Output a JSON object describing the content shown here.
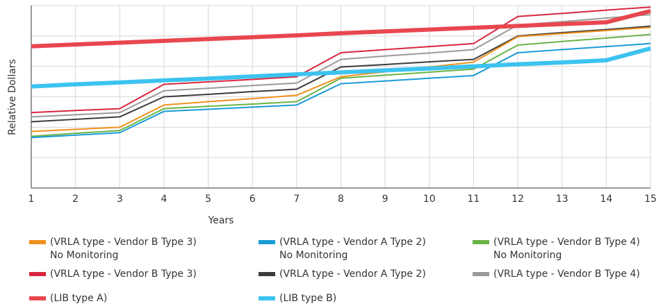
{
  "chart_data": {
    "type": "line",
    "x_label": "Years",
    "y_label": "Relative Dollars",
    "x": [
      1,
      2,
      3,
      4,
      5,
      6,
      7,
      8,
      9,
      10,
      11,
      12,
      13,
      14,
      15
    ],
    "xlim": [
      1,
      15
    ],
    "xticks": [
      1,
      2,
      3,
      4,
      5,
      6,
      7,
      8,
      9,
      10,
      11,
      12,
      13,
      14,
      15
    ],
    "ylim": [
      0,
      6
    ],
    "ygrid": [
      0,
      1,
      2,
      3,
      4,
      5,
      6
    ],
    "grid": true,
    "series": [
      {
        "name": "(VRLA type - Vendor B Type 3)\nNo Monitoring",
        "color": "#f0901e",
        "width": 2,
        "values": [
          1.86,
          1.93,
          2.0,
          2.73,
          2.84,
          2.94,
          3.05,
          3.66,
          3.82,
          3.98,
          4.14,
          4.98,
          5.08,
          5.18,
          5.28
        ]
      },
      {
        "name": "(VRLA type - Vendor A Type 2)\nNo Monitoring",
        "color": "#1a9bd6",
        "width": 2,
        "values": [
          1.66,
          1.74,
          1.82,
          2.52,
          2.59,
          2.66,
          2.73,
          3.43,
          3.52,
          3.61,
          3.7,
          4.45,
          4.55,
          4.65,
          4.75
        ]
      },
      {
        "name": "(VRLA type - Vendor B Type 4)\nNo Monitoring",
        "color": "#6ab344",
        "width": 2,
        "values": [
          1.7,
          1.8,
          1.89,
          2.61,
          2.69,
          2.76,
          2.84,
          3.61,
          3.71,
          3.81,
          3.91,
          4.7,
          4.82,
          4.93,
          5.05
        ]
      },
      {
        "name": "(VRLA type - Vendor B Type 3)",
        "color": "#d7263d",
        "width": 2,
        "values": [
          2.48,
          2.55,
          2.61,
          3.41,
          3.49,
          3.57,
          3.66,
          4.45,
          4.55,
          4.65,
          4.75,
          5.64,
          5.74,
          5.85,
          5.95
        ]
      },
      {
        "name": "(VRLA type - Vendor A Type 2)",
        "color": "#3b3b3b",
        "width": 2,
        "values": [
          2.18,
          2.26,
          2.34,
          3.0,
          3.08,
          3.17,
          3.25,
          3.98,
          4.06,
          4.15,
          4.23,
          5.0,
          5.11,
          5.21,
          5.32
        ]
      },
      {
        "name": "(VRLA type - Vendor B Type 4)",
        "color": "#9a9a9a",
        "width": 2,
        "values": [
          2.34,
          2.41,
          2.48,
          3.2,
          3.28,
          3.37,
          3.45,
          4.23,
          4.34,
          4.44,
          4.55,
          5.36,
          5.47,
          5.59,
          5.7
        ]
      },
      {
        "name": "(LIB type A)",
        "color": "#e8474f",
        "width": 6,
        "values": [
          4.66,
          4.72,
          4.78,
          4.84,
          4.9,
          4.96,
          5.02,
          5.09,
          5.15,
          5.21,
          5.27,
          5.33,
          5.39,
          5.45,
          5.82
        ]
      },
      {
        "name": "(LIB type B)",
        "color": "#3cc3f0",
        "width": 6,
        "values": [
          3.34,
          3.41,
          3.47,
          3.54,
          3.6,
          3.67,
          3.74,
          3.8,
          3.87,
          3.93,
          4.0,
          4.07,
          4.13,
          4.2,
          4.59
        ]
      }
    ]
  }
}
